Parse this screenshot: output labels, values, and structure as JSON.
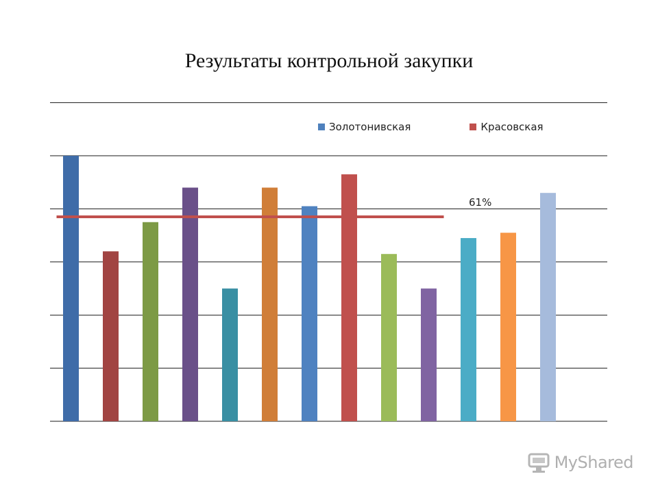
{
  "chart_data": {
    "type": "bar",
    "title": "Результаты контрольной закупки",
    "xlabel": "",
    "ylabel": "",
    "categories": [
      "",
      "",
      "",
      "",
      "",
      "",
      "",
      "",
      "",
      "",
      "",
      "",
      ""
    ],
    "values": [
      100,
      64,
      75,
      88,
      50,
      88,
      81,
      93,
      63,
      50,
      69,
      71,
      86
    ],
    "colors": [
      "#3f6ca8",
      "#a14442",
      "#7d9a45",
      "#6a5089",
      "#398fa3",
      "#d07e38",
      "#4f82c0",
      "#c0504d",
      "#9bbb59",
      "#8064a2",
      "#4bacc6",
      "#f79646",
      "#a6bbdc"
    ],
    "ylim": [
      0,
      100
    ],
    "gridlines": [
      0,
      20,
      40,
      60,
      80,
      100,
      120
    ],
    "grid": true,
    "legend": {
      "placement": "top-center",
      "entries": [
        {
          "label": "Золотонивская",
          "color": "#4f81bd"
        },
        {
          "label": "Красовская",
          "color": "#c0504d"
        }
      ]
    },
    "reference_line": {
      "value": 77,
      "color": "#c0504d",
      "from_category": 0,
      "to_category": 9
    },
    "annotations": [
      {
        "text": "61%"
      }
    ]
  },
  "watermark": {
    "text": "MyShared"
  }
}
